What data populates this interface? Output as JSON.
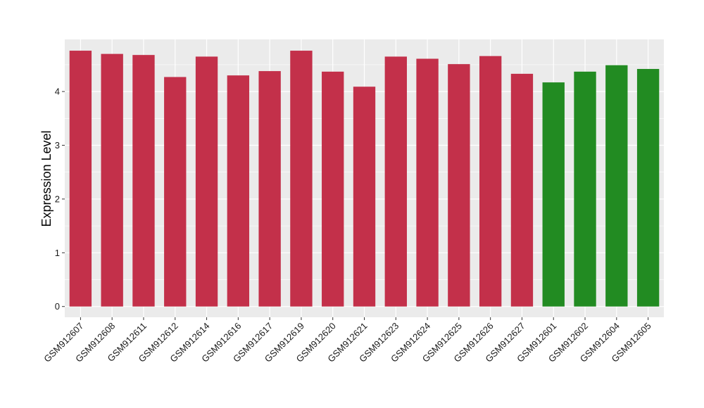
{
  "chart_data": {
    "type": "bar",
    "title": "",
    "xlabel": "",
    "ylabel": "Expression Level",
    "ylim": [
      -0.2,
      4.97
    ],
    "y_ticks": [
      0,
      1,
      2,
      3,
      4
    ],
    "grid": true,
    "legend": "none",
    "categories": [
      "GSM912607",
      "GSM912608",
      "GSM912611",
      "GSM912612",
      "GSM912614",
      "GSM912616",
      "GSM912617",
      "GSM912619",
      "GSM912620",
      "GSM912621",
      "GSM912623",
      "GSM912624",
      "GSM912625",
      "GSM912626",
      "GSM912627",
      "GSM912601",
      "GSM912602",
      "GSM912604",
      "GSM912605"
    ],
    "values": [
      4.76,
      4.7,
      4.68,
      4.27,
      4.65,
      4.3,
      4.38,
      4.76,
      4.37,
      4.09,
      4.65,
      4.61,
      4.51,
      4.66,
      4.33,
      4.17,
      4.37,
      4.49,
      4.42
    ],
    "bar_colors": [
      "#c3304a",
      "#c3304a",
      "#c3304a",
      "#c3304a",
      "#c3304a",
      "#c3304a",
      "#c3304a",
      "#c3304a",
      "#c3304a",
      "#c3304a",
      "#c3304a",
      "#c3304a",
      "#c3304a",
      "#c3304a",
      "#c3304a",
      "#228b22",
      "#228b22",
      "#228b22",
      "#228b22"
    ],
    "colors": {
      "panel_background": "#ebebeb",
      "gridline": "#ffffff",
      "axis_tick": "#333333"
    }
  }
}
